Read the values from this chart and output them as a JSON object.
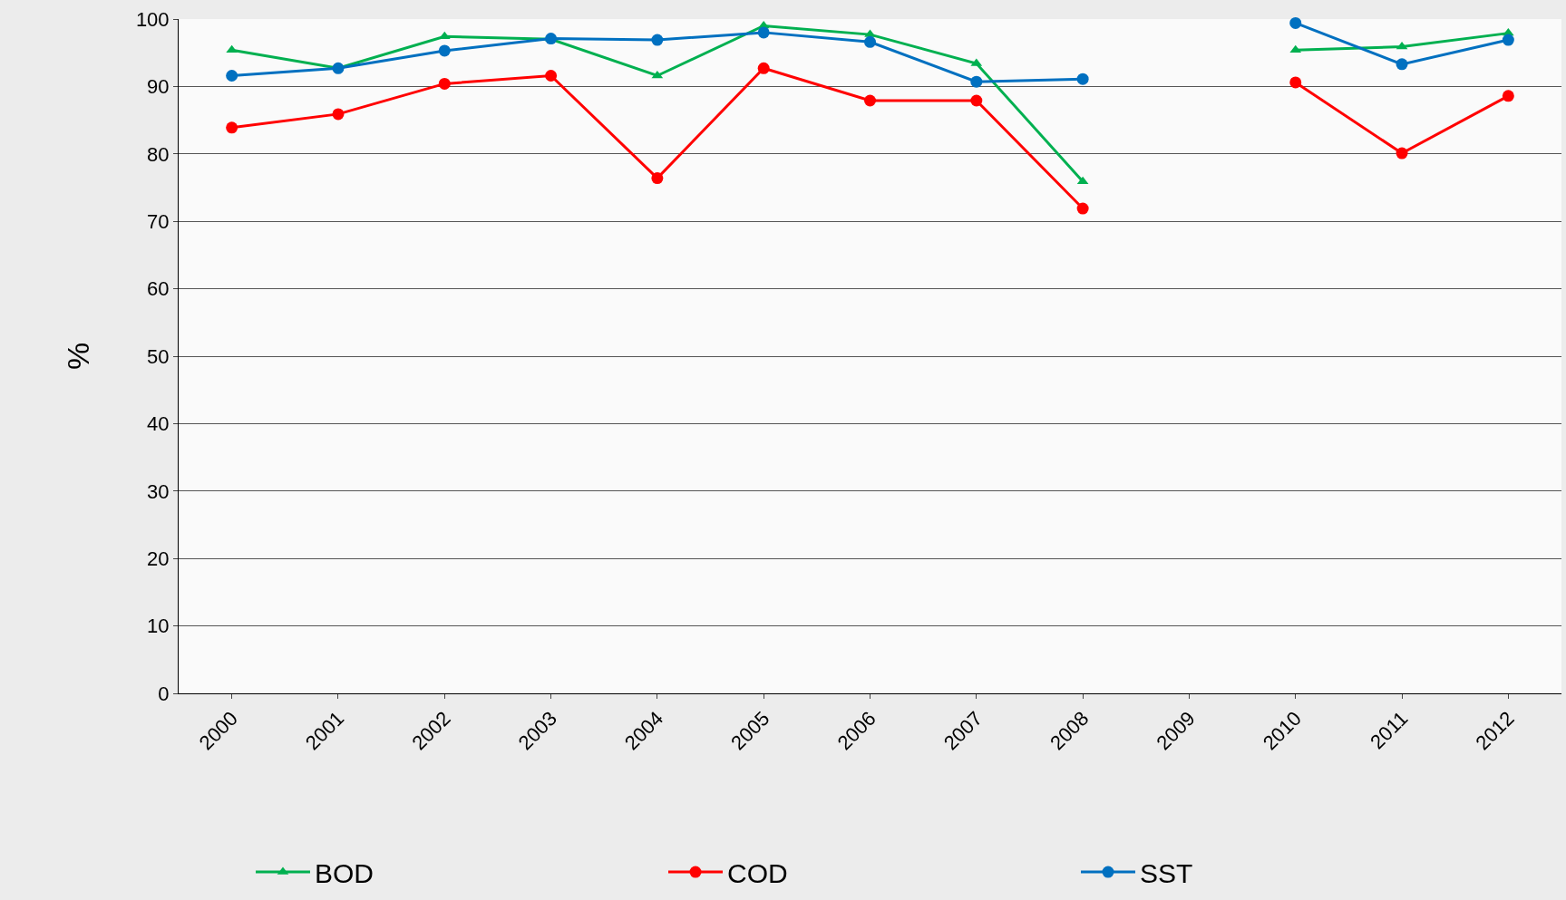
{
  "chart_data": {
    "type": "line",
    "ylabel": "%",
    "categories": [
      "2000",
      "2001",
      "2002",
      "2003",
      "2004",
      "2005",
      "2006",
      "2007",
      "2008",
      "2009",
      "2010",
      "2011",
      "2012"
    ],
    "series": [
      {
        "name": "BOD",
        "color": "#00b050",
        "marker": "triangle",
        "values": [
          95.4,
          92.7,
          97.4,
          97.0,
          91.6,
          99.0,
          97.7,
          93.4,
          75.9,
          null,
          95.4,
          95.9,
          97.9
        ]
      },
      {
        "name": "COD",
        "color": "#ff0000",
        "marker": "circle",
        "values": [
          83.9,
          85.9,
          90.4,
          91.6,
          76.4,
          92.7,
          87.9,
          87.9,
          71.9,
          null,
          90.6,
          80.1,
          88.6
        ]
      },
      {
        "name": "SST",
        "color": "#0070c0",
        "marker": "circle",
        "values": [
          91.6,
          92.7,
          95.3,
          97.1,
          96.9,
          98.0,
          96.6,
          90.7,
          91.1,
          null,
          99.4,
          93.3,
          96.9
        ]
      }
    ],
    "ylim": [
      0,
      100
    ],
    "yticks": [
      0,
      10,
      20,
      30,
      40,
      50,
      60,
      70,
      80,
      90,
      100
    ],
    "grid": "y",
    "legend": "bottom",
    "line_style": "solid"
  }
}
